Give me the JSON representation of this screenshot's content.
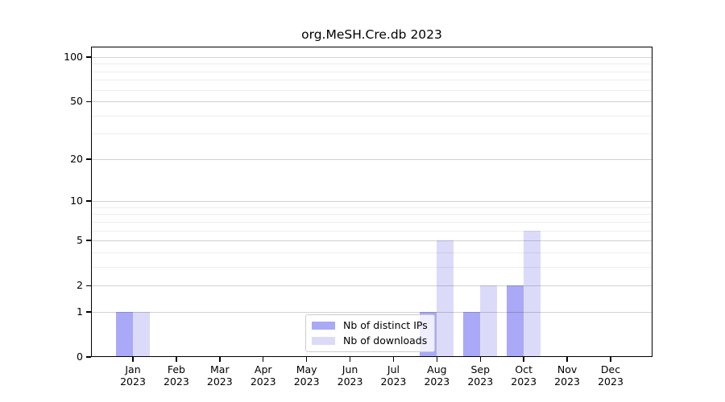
{
  "chart_data": {
    "type": "bar",
    "title": "org.MeSH.Cre.db 2023",
    "categories": [
      "Jan",
      "Feb",
      "Mar",
      "Apr",
      "May",
      "Jun",
      "Jul",
      "Aug",
      "Sep",
      "Oct",
      "Nov",
      "Dec"
    ],
    "category_year": "2023",
    "series": [
      {
        "name": "Nb of distinct IPs",
        "color": "#a9a9f7",
        "values": [
          1,
          0,
          0,
          0,
          0,
          0,
          0,
          1,
          1,
          2,
          0,
          0
        ]
      },
      {
        "name": "Nb of downloads",
        "color": "#dbdbf9",
        "values": [
          1,
          0,
          0,
          0,
          0,
          0,
          0,
          5,
          2,
          6,
          0,
          0
        ]
      }
    ],
    "y_scale": "log1p",
    "y_ticks": [
      0,
      1,
      2,
      5,
      10,
      20,
      50,
      100
    ],
    "y_minor_gridlines": [
      3,
      4,
      6,
      7,
      8,
      9,
      30,
      40,
      60,
      70,
      80,
      90
    ],
    "ylim": [
      0,
      118
    ],
    "xlabel": "",
    "ylabel": "",
    "grid": "horizontal",
    "legend_position": "lower-center-inside"
  }
}
